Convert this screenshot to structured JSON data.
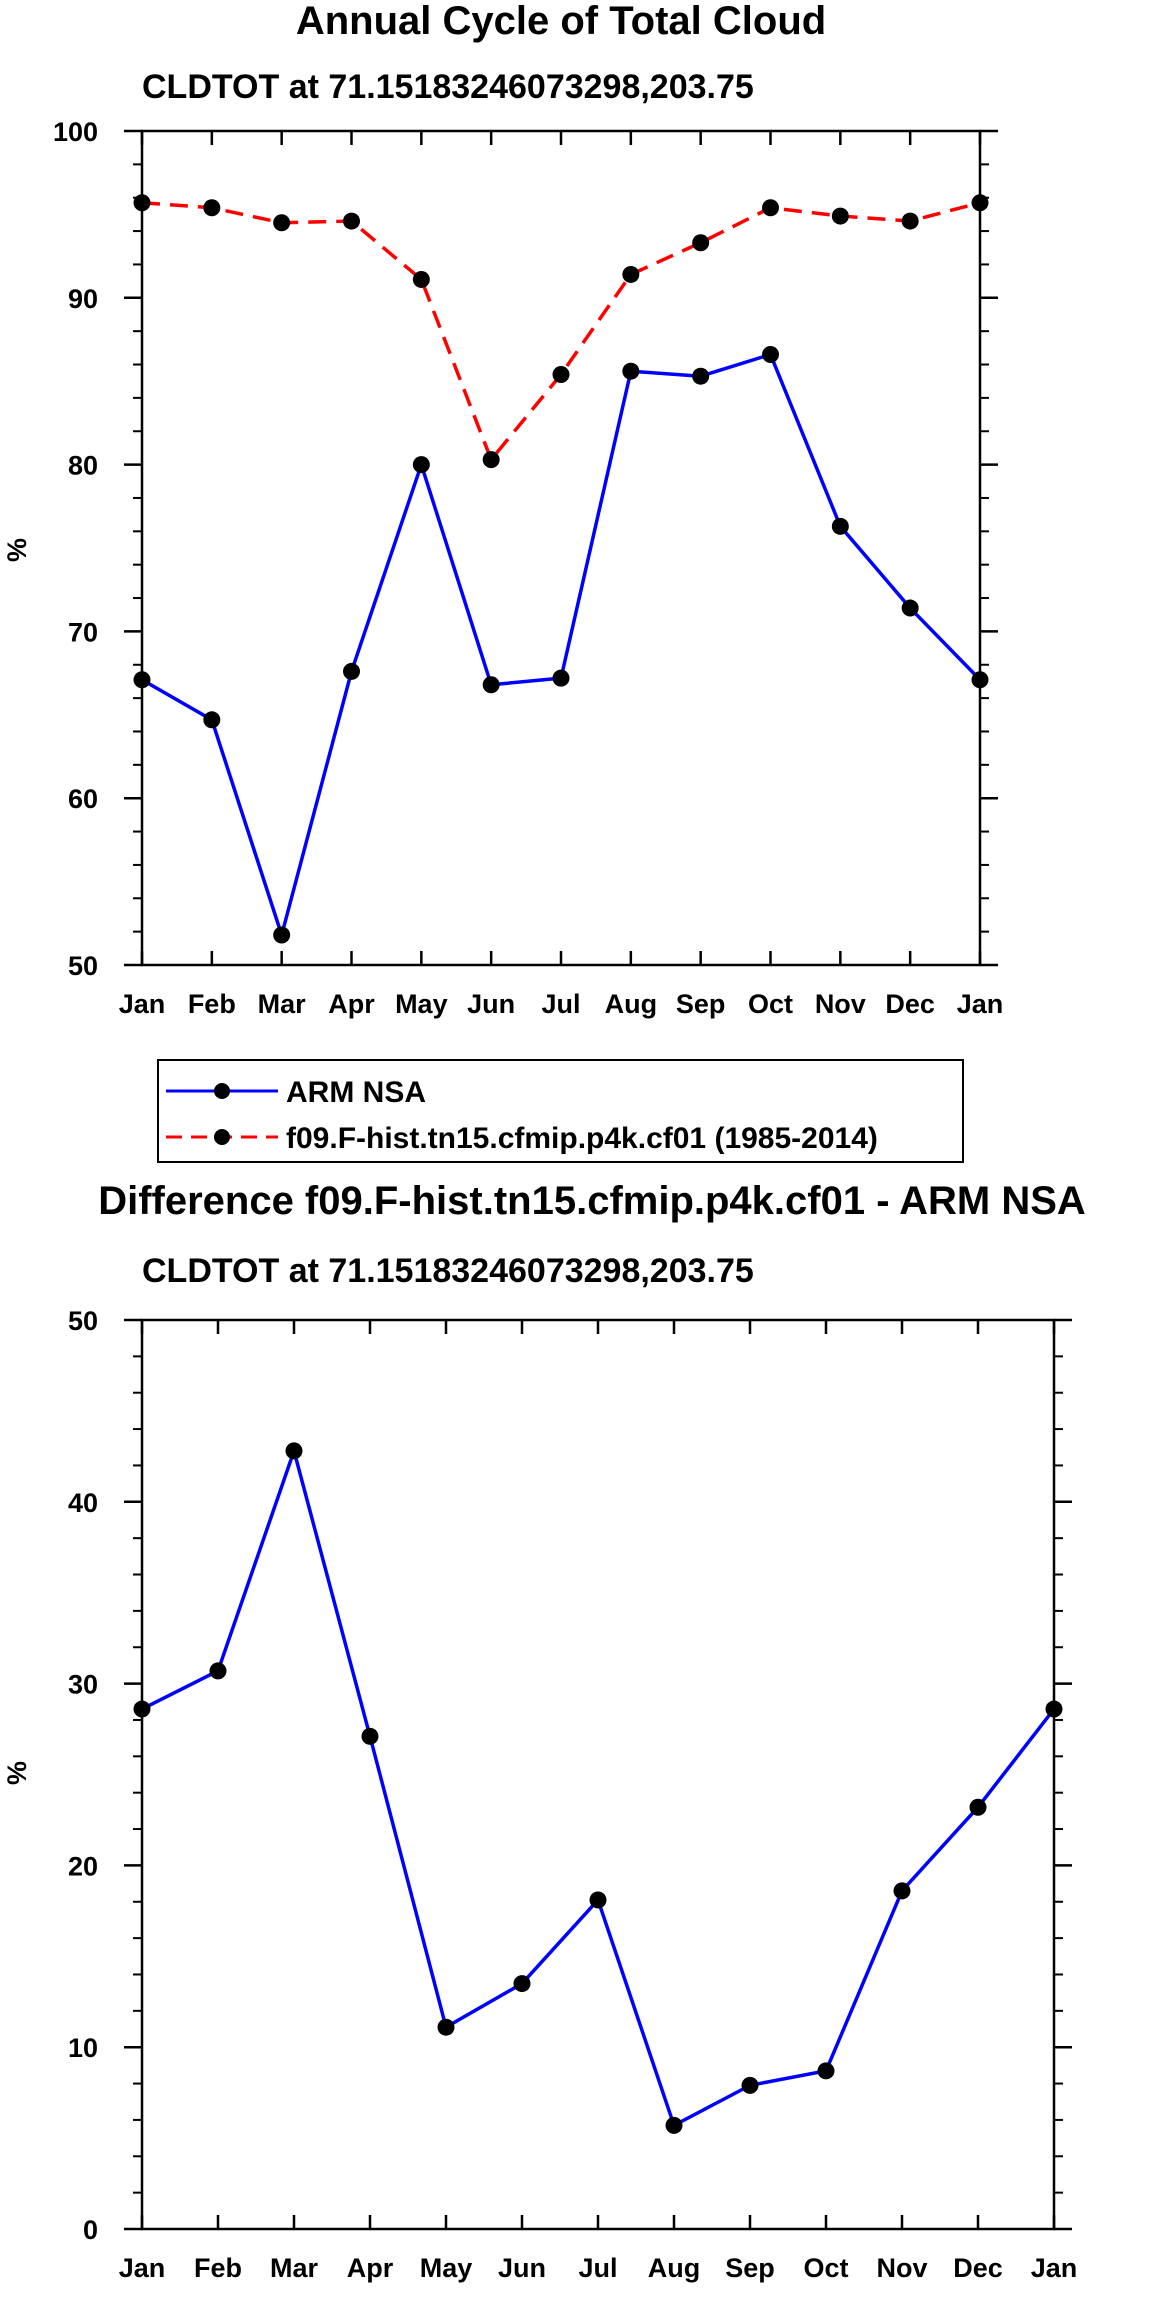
{
  "chart_data": [
    {
      "type": "line",
      "title": "Annual Cycle of Total Cloud",
      "subtitle": "CLDTOT at 71.15183246073298,203.75",
      "xlabel": "",
      "ylabel": "%",
      "categories": [
        "Jan",
        "Feb",
        "Mar",
        "Apr",
        "May",
        "Jun",
        "Jul",
        "Aug",
        "Sep",
        "Oct",
        "Nov",
        "Dec",
        "Jan"
      ],
      "ylim": [
        50,
        100
      ],
      "yticks": [
        50,
        60,
        70,
        80,
        90,
        100
      ],
      "series": [
        {
          "name": "ARM NSA",
          "color": "#0000ff",
          "dash": "solid",
          "values": [
            67.1,
            64.7,
            51.8,
            67.6,
            80.0,
            66.8,
            67.2,
            85.6,
            85.3,
            86.6,
            76.3,
            71.4,
            67.1
          ]
        },
        {
          "name": "f09.F-hist.tn15.cfmip.p4k.cf01 (1985-2014)",
          "color": "#ff0000",
          "dash": "dashed",
          "values": [
            95.7,
            95.4,
            94.5,
            94.6,
            91.1,
            80.3,
            85.4,
            91.4,
            93.3,
            95.4,
            94.9,
            94.6,
            95.7
          ]
        }
      ],
      "legend": [
        {
          "label": "ARM NSA",
          "color": "#0000ff",
          "dash": "solid"
        },
        {
          "label": "f09.F-hist.tn15.cfmip.p4k.cf01 (1985-2014)",
          "color": "#ff0000",
          "dash": "dashed"
        }
      ]
    },
    {
      "type": "line",
      "title": "Difference f09.F-hist.tn15.cfmip.p4k.cf01 - ARM NSA",
      "subtitle": "CLDTOT at 71.15183246073298,203.75",
      "xlabel": "",
      "ylabel": "%",
      "categories": [
        "Jan",
        "Feb",
        "Mar",
        "Apr",
        "May",
        "Jun",
        "Jul",
        "Aug",
        "Sep",
        "Oct",
        "Nov",
        "Dec",
        "Jan"
      ],
      "ylim": [
        0,
        50
      ],
      "yticks": [
        0,
        10,
        20,
        30,
        40,
        50
      ],
      "series": [
        {
          "name": "Difference",
          "color": "#0000ff",
          "dash": "solid",
          "values": [
            28.6,
            30.7,
            42.8,
            27.1,
            11.1,
            13.5,
            18.1,
            5.7,
            7.9,
            8.7,
            18.6,
            23.2,
            28.6
          ]
        }
      ]
    }
  ]
}
